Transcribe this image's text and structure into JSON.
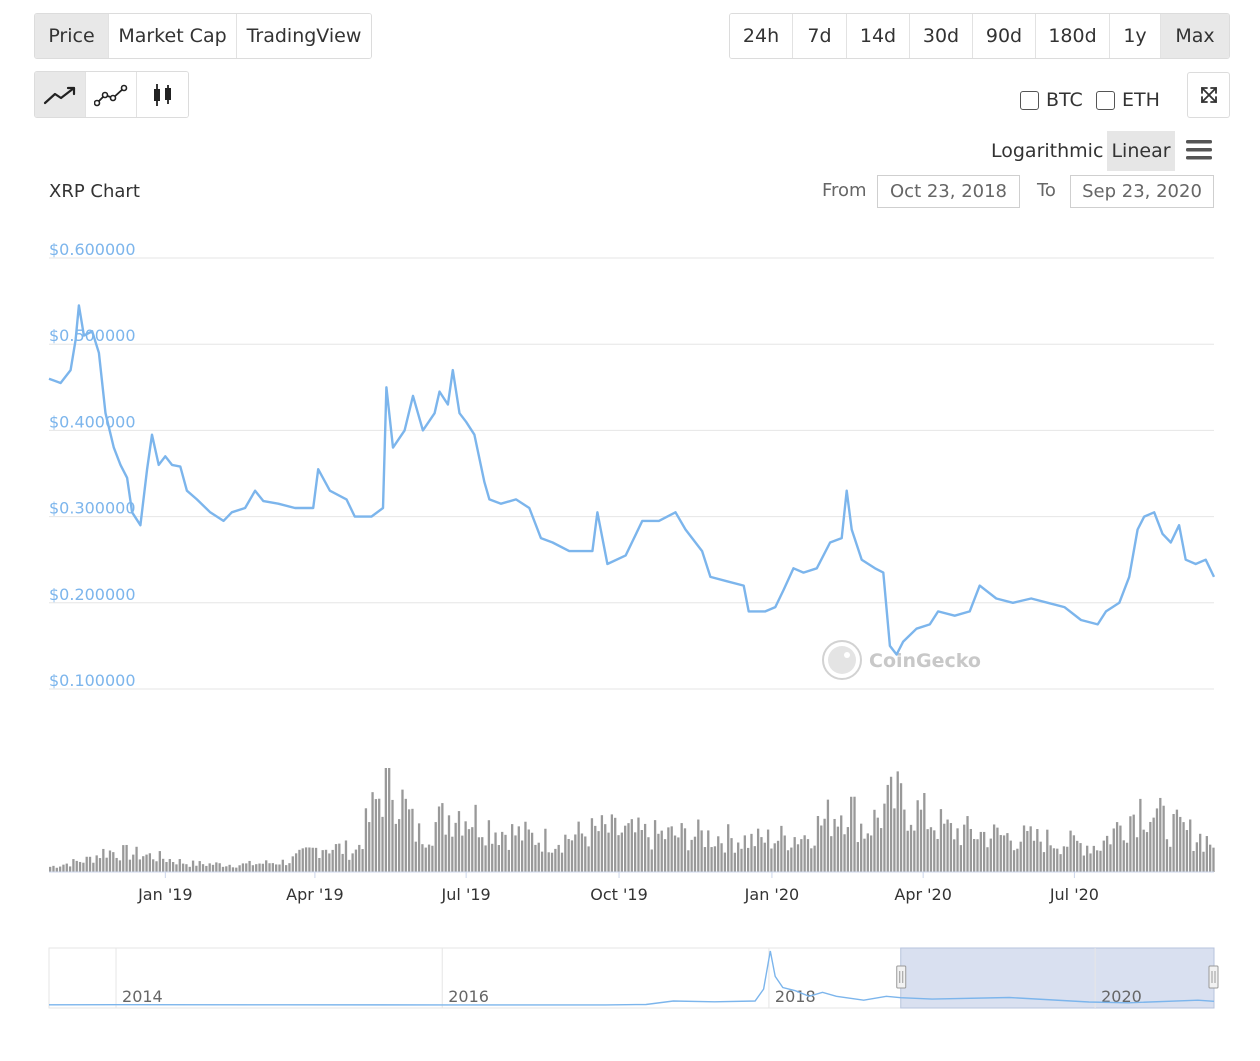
{
  "tabs": [
    {
      "label": "Price",
      "active": true
    },
    {
      "label": "Market Cap",
      "active": false
    },
    {
      "label": "TradingView",
      "active": false
    }
  ],
  "ranges": [
    {
      "label": "24h",
      "active": false
    },
    {
      "label": "7d",
      "active": false
    },
    {
      "label": "14d",
      "active": false
    },
    {
      "label": "30d",
      "active": false
    },
    {
      "label": "90d",
      "active": false
    },
    {
      "label": "180d",
      "active": false
    },
    {
      "label": "1y",
      "active": false
    },
    {
      "label": "Max",
      "active": true
    }
  ],
  "chart_types": [
    {
      "icon": "line-chart-icon",
      "active": true
    },
    {
      "icon": "point-line-chart-icon",
      "active": false
    },
    {
      "icon": "candlestick-icon",
      "active": false
    }
  ],
  "compare": [
    {
      "label": "BTC",
      "checked": false
    },
    {
      "label": "ETH",
      "checked": false
    }
  ],
  "scale": {
    "log_label": "Logarithmic",
    "linear_label": "Linear",
    "selected": "Linear"
  },
  "date_range": {
    "from_label": "From",
    "from_value": "Oct 23, 2018",
    "to_label": "To",
    "to_value": "Sep 23, 2020"
  },
  "watermark": "CoinGecko",
  "chart_data": {
    "type": "line",
    "title": "XRP Chart",
    "y_scale": "linear",
    "y_ticks": [
      "$0.600000",
      "$0.500000",
      "$0.400000",
      "$0.300000",
      "$0.200000",
      "$0.100000"
    ],
    "ylim": [
      0.1,
      0.6
    ],
    "x_ticks": [
      {
        "label": "Jan '19",
        "date": "2019-01-01"
      },
      {
        "label": "Apr '19",
        "date": "2019-04-01"
      },
      {
        "label": "Jul '19",
        "date": "2019-07-01"
      },
      {
        "label": "Oct '19",
        "date": "2019-10-01"
      },
      {
        "label": "Jan '20",
        "date": "2020-01-01"
      },
      {
        "label": "Apr '20",
        "date": "2020-04-01"
      },
      {
        "label": "Jul '20",
        "date": "2020-07-01"
      }
    ],
    "x_range": [
      "2018-10-23",
      "2020-09-23"
    ],
    "series": [
      {
        "color": "#7cb5ec",
        "points": [
          [
            "2018-10-23",
            0.46
          ],
          [
            "2018-10-30",
            0.455
          ],
          [
            "2018-11-05",
            0.47
          ],
          [
            "2018-11-08",
            0.505
          ],
          [
            "2018-11-10",
            0.545
          ],
          [
            "2018-11-13",
            0.51
          ],
          [
            "2018-11-18",
            0.515
          ],
          [
            "2018-11-22",
            0.49
          ],
          [
            "2018-11-26",
            0.42
          ],
          [
            "2018-12-01",
            0.38
          ],
          [
            "2018-12-05",
            0.36
          ],
          [
            "2018-12-09",
            0.345
          ],
          [
            "2018-12-12",
            0.305
          ],
          [
            "2018-12-17",
            0.29
          ],
          [
            "2018-12-21",
            0.355
          ],
          [
            "2018-12-24",
            0.395
          ],
          [
            "2018-12-28",
            0.36
          ],
          [
            "2019-01-01",
            0.37
          ],
          [
            "2019-01-05",
            0.36
          ],
          [
            "2019-01-10",
            0.358
          ],
          [
            "2019-01-14",
            0.33
          ],
          [
            "2019-01-20",
            0.32
          ],
          [
            "2019-01-28",
            0.305
          ],
          [
            "2019-02-05",
            0.295
          ],
          [
            "2019-02-10",
            0.305
          ],
          [
            "2019-02-18",
            0.31
          ],
          [
            "2019-02-24",
            0.33
          ],
          [
            "2019-03-01",
            0.318
          ],
          [
            "2019-03-10",
            0.315
          ],
          [
            "2019-03-20",
            0.31
          ],
          [
            "2019-03-31",
            0.31
          ],
          [
            "2019-04-03",
            0.355
          ],
          [
            "2019-04-10",
            0.33
          ],
          [
            "2019-04-20",
            0.32
          ],
          [
            "2019-04-25",
            0.3
          ],
          [
            "2019-05-05",
            0.3
          ],
          [
            "2019-05-12",
            0.31
          ],
          [
            "2019-05-14",
            0.45
          ],
          [
            "2019-05-18",
            0.38
          ],
          [
            "2019-05-25",
            0.4
          ],
          [
            "2019-05-30",
            0.44
          ],
          [
            "2019-06-05",
            0.4
          ],
          [
            "2019-06-12",
            0.42
          ],
          [
            "2019-06-15",
            0.445
          ],
          [
            "2019-06-20",
            0.43
          ],
          [
            "2019-06-23",
            0.47
          ],
          [
            "2019-06-27",
            0.42
          ],
          [
            "2019-07-01",
            0.41
          ],
          [
            "2019-07-06",
            0.395
          ],
          [
            "2019-07-12",
            0.34
          ],
          [
            "2019-07-15",
            0.32
          ],
          [
            "2019-07-22",
            0.315
          ],
          [
            "2019-07-31",
            0.32
          ],
          [
            "2019-08-08",
            0.31
          ],
          [
            "2019-08-15",
            0.275
          ],
          [
            "2019-08-22",
            0.27
          ],
          [
            "2019-09-01",
            0.26
          ],
          [
            "2019-09-15",
            0.26
          ],
          [
            "2019-09-18",
            0.305
          ],
          [
            "2019-09-24",
            0.245
          ],
          [
            "2019-10-05",
            0.255
          ],
          [
            "2019-10-15",
            0.295
          ],
          [
            "2019-10-25",
            0.295
          ],
          [
            "2019-11-04",
            0.305
          ],
          [
            "2019-11-10",
            0.285
          ],
          [
            "2019-11-20",
            0.26
          ],
          [
            "2019-11-25",
            0.23
          ],
          [
            "2019-12-05",
            0.225
          ],
          [
            "2019-12-15",
            0.22
          ],
          [
            "2019-12-18",
            0.19
          ],
          [
            "2019-12-28",
            0.19
          ],
          [
            "2020-01-03",
            0.195
          ],
          [
            "2020-01-08",
            0.215
          ],
          [
            "2020-01-14",
            0.24
          ],
          [
            "2020-01-20",
            0.235
          ],
          [
            "2020-01-28",
            0.24
          ],
          [
            "2020-02-05",
            0.27
          ],
          [
            "2020-02-12",
            0.275
          ],
          [
            "2020-02-15",
            0.33
          ],
          [
            "2020-02-18",
            0.285
          ],
          [
            "2020-02-24",
            0.25
          ],
          [
            "2020-03-03",
            0.24
          ],
          [
            "2020-03-08",
            0.235
          ],
          [
            "2020-03-12",
            0.15
          ],
          [
            "2020-03-16",
            0.14
          ],
          [
            "2020-03-20",
            0.155
          ],
          [
            "2020-03-28",
            0.17
          ],
          [
            "2020-04-05",
            0.175
          ],
          [
            "2020-04-10",
            0.19
          ],
          [
            "2020-04-20",
            0.185
          ],
          [
            "2020-04-29",
            0.19
          ],
          [
            "2020-05-05",
            0.22
          ],
          [
            "2020-05-15",
            0.205
          ],
          [
            "2020-05-25",
            0.2
          ],
          [
            "2020-06-05",
            0.205
          ],
          [
            "2020-06-15",
            0.2
          ],
          [
            "2020-06-25",
            0.195
          ],
          [
            "2020-07-05",
            0.18
          ],
          [
            "2020-07-15",
            0.175
          ],
          [
            "2020-07-20",
            0.19
          ],
          [
            "2020-07-28",
            0.2
          ],
          [
            "2020-08-03",
            0.23
          ],
          [
            "2020-08-08",
            0.285
          ],
          [
            "2020-08-12",
            0.3
          ],
          [
            "2020-08-18",
            0.305
          ],
          [
            "2020-08-23",
            0.28
          ],
          [
            "2020-08-28",
            0.27
          ],
          [
            "2020-09-02",
            0.29
          ],
          [
            "2020-09-06",
            0.25
          ],
          [
            "2020-09-12",
            0.245
          ],
          [
            "2020-09-18",
            0.25
          ],
          [
            "2020-09-23",
            0.23
          ]
        ]
      }
    ],
    "volume": {
      "color": "#999999",
      "points": [
        [
          "2018-10-23",
          0.05
        ],
        [
          "2018-11-15",
          0.12
        ],
        [
          "2018-11-25",
          0.2
        ],
        [
          "2018-12-10",
          0.18
        ],
        [
          "2018-12-25",
          0.15
        ],
        [
          "2019-01-15",
          0.08
        ],
        [
          "2019-02-15",
          0.07
        ],
        [
          "2019-03-15",
          0.1
        ],
        [
          "2019-04-05",
          0.25
        ],
        [
          "2019-04-25",
          0.2
        ],
        [
          "2019-05-15",
          0.95
        ],
        [
          "2019-06-01",
          0.35
        ],
        [
          "2019-06-25",
          0.6
        ],
        [
          "2019-07-20",
          0.4
        ],
        [
          "2019-08-20",
          0.3
        ],
        [
          "2019-09-20",
          0.4
        ],
        [
          "2019-10-20",
          0.35
        ],
        [
          "2019-11-20",
          0.35
        ],
        [
          "2019-12-20",
          0.3
        ],
        [
          "2020-01-20",
          0.35
        ],
        [
          "2020-02-15",
          0.65
        ],
        [
          "2020-02-25",
          0.4
        ],
        [
          "2020-03-15",
          0.7
        ],
        [
          "2020-04-15",
          0.4
        ],
        [
          "2020-05-15",
          0.35
        ],
        [
          "2020-06-15",
          0.3
        ],
        [
          "2020-07-15",
          0.25
        ],
        [
          "2020-08-10",
          0.65
        ],
        [
          "2020-08-25",
          0.45
        ],
        [
          "2020-09-23",
          0.28
        ]
      ]
    },
    "navigator": {
      "x_ticks": [
        {
          "label": "2014",
          "date": "2014-01-01"
        },
        {
          "label": "2016",
          "date": "2016-01-01"
        },
        {
          "label": "2018",
          "date": "2018-01-01"
        },
        {
          "label": "2020",
          "date": "2020-01-01"
        }
      ],
      "x_range": [
        "2013-08-04",
        "2020-09-23"
      ],
      "selection": [
        "2018-10-23",
        "2020-09-23"
      ],
      "points": [
        [
          "2013-08-04",
          0.01
        ],
        [
          "2014-01-01",
          0.02
        ],
        [
          "2015-01-01",
          0.015
        ],
        [
          "2016-01-01",
          0.006
        ],
        [
          "2017-01-01",
          0.007
        ],
        [
          "2017-04-01",
          0.03
        ],
        [
          "2017-06-01",
          0.25
        ],
        [
          "2017-09-01",
          0.2
        ],
        [
          "2017-12-01",
          0.25
        ],
        [
          "2017-12-20",
          1.0
        ],
        [
          "2018-01-04",
          3.4
        ],
        [
          "2018-01-15",
          1.8
        ],
        [
          "2018-02-01",
          1.1
        ],
        [
          "2018-03-01",
          0.9
        ],
        [
          "2018-04-01",
          0.55
        ],
        [
          "2018-05-01",
          0.8
        ],
        [
          "2018-06-01",
          0.55
        ],
        [
          "2018-08-01",
          0.3
        ],
        [
          "2018-09-21",
          0.55
        ],
        [
          "2018-10-23",
          0.46
        ],
        [
          "2019-01-01",
          0.37
        ],
        [
          "2019-06-23",
          0.47
        ],
        [
          "2019-12-18",
          0.19
        ],
        [
          "2020-03-16",
          0.14
        ],
        [
          "2020-08-18",
          0.3
        ],
        [
          "2020-09-23",
          0.23
        ]
      ]
    }
  }
}
